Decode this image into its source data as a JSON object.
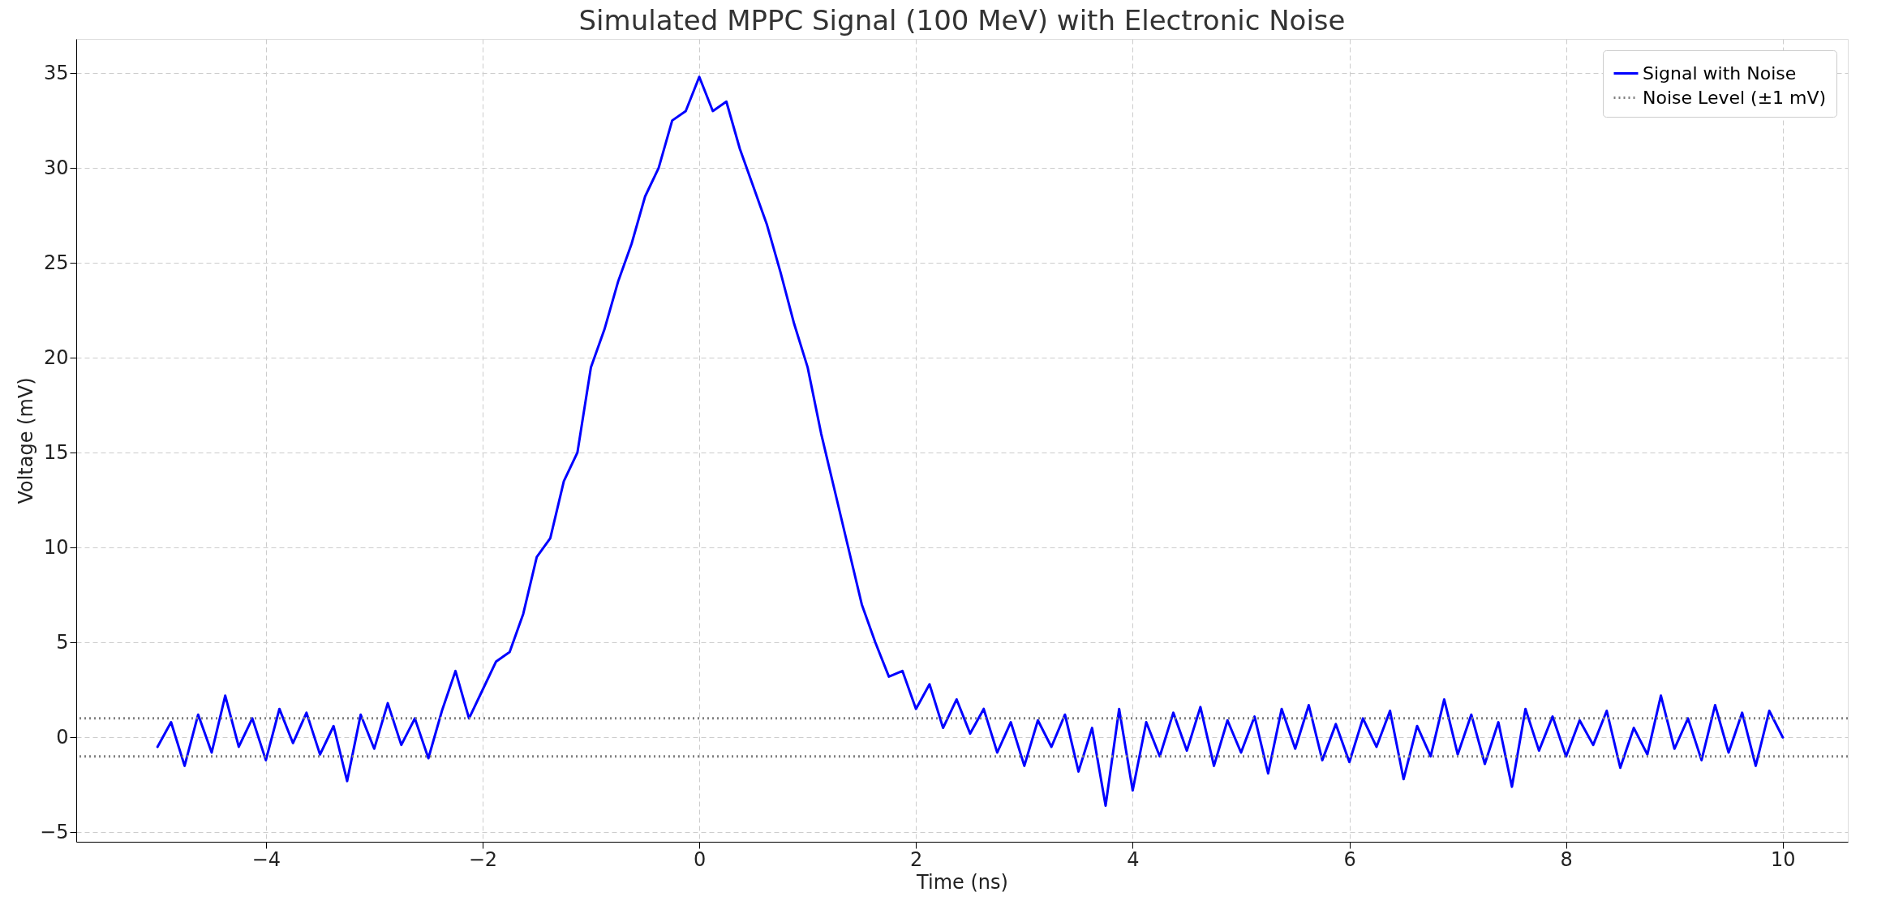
{
  "chart_data": {
    "type": "line",
    "title": "Simulated MPPC Signal (100 MeV) with Electronic Noise",
    "xlabel": "Time (ns)",
    "ylabel": "Voltage (mV)",
    "xlim": [
      -5.75,
      10.6
    ],
    "ylim": [
      -5.5,
      36.8
    ],
    "xticks": [
      -4,
      -2,
      0,
      2,
      4,
      6,
      8,
      10
    ],
    "yticks": [
      -5,
      0,
      5,
      10,
      15,
      20,
      25,
      30,
      35
    ],
    "grid": true,
    "legend": "top right",
    "line_style": "solid",
    "x": [
      -5,
      -4.875,
      -4.75,
      -4.625,
      -4.5,
      -4.375,
      -4.25,
      -4.125,
      -4,
      -3.875,
      -3.75,
      -3.625,
      -3.5,
      -3.375,
      -3.25,
      -3.125,
      -3,
      -2.875,
      -2.75,
      -2.625,
      -2.5,
      -2.375,
      -2.25,
      -2.125,
      -2,
      -1.875,
      -1.75,
      -1.625,
      -1.5,
      -1.375,
      -1.25,
      -1.125,
      -1,
      -0.875,
      -0.75,
      -0.625,
      -0.5,
      -0.375,
      -0.25,
      -0.125,
      0,
      0.125,
      0.25,
      0.375,
      0.5,
      0.625,
      0.75,
      0.875,
      1,
      1.125,
      1.25,
      1.375,
      1.5,
      1.625,
      1.75,
      1.875,
      2,
      2.125,
      2.25,
      2.375,
      2.5,
      2.625,
      2.75,
      2.875,
      3,
      3.125,
      3.25,
      3.375,
      3.5,
      3.625,
      3.75,
      3.875,
      4,
      4.125,
      4.25,
      4.375,
      4.5,
      4.625,
      4.75,
      4.875,
      5,
      5.125,
      5.25,
      5.375,
      5.5,
      5.625,
      5.75,
      5.875,
      6,
      6.125,
      6.25,
      6.375,
      6.5,
      6.625,
      6.75,
      6.875,
      7,
      7.125,
      7.25,
      7.375,
      7.5,
      7.625,
      7.75,
      7.875,
      8,
      8.125,
      8.25,
      8.375,
      8.5,
      8.625,
      8.75,
      8.875,
      9,
      9.125,
      9.25,
      9.375,
      9.5,
      9.625,
      9.75,
      9.875,
      10
    ],
    "series": [
      {
        "name": "Signal with Noise",
        "color": "#0000ff",
        "values": [
          -0.5,
          0.8,
          -1.5,
          1.2,
          -0.8,
          2.2,
          -0.5,
          1.0,
          -1.2,
          1.5,
          -0.3,
          1.3,
          -0.9,
          0.6,
          -2.3,
          1.2,
          -0.6,
          1.8,
          -0.4,
          1.0,
          -1.1,
          1.4,
          3.5,
          1.0,
          2.5,
          4.0,
          4.5,
          6.5,
          9.5,
          10.5,
          13.5,
          15.0,
          19.5,
          21.5,
          24.0,
          26.0,
          28.5,
          30.0,
          32.5,
          33.0,
          34.8,
          33.0,
          33.5,
          31.0,
          29.0,
          27.0,
          24.5,
          21.8,
          19.5,
          16.0,
          13.0,
          10.0,
          7.0,
          5.0,
          3.2,
          3.5,
          1.5,
          2.8,
          0.5,
          2.0,
          0.2,
          1.5,
          -0.8,
          0.8,
          -1.5,
          0.9,
          -0.5,
          1.2,
          -1.8,
          0.5,
          -3.6,
          1.5,
          -2.8,
          0.8,
          -1.0,
          1.3,
          -0.7,
          1.6,
          -1.5,
          0.9,
          -0.8,
          1.1,
          -1.9,
          1.5,
          -0.6,
          1.7,
          -1.2,
          0.7,
          -1.3,
          1.0,
          -0.5,
          1.4,
          -2.2,
          0.6,
          -1.0,
          2.0,
          -0.9,
          1.2,
          -1.4,
          0.8,
          -2.6,
          1.5,
          -0.7,
          1.1,
          -1.0,
          0.9,
          -0.4,
          1.4,
          -1.6,
          0.5,
          -0.9,
          2.2,
          -0.6,
          1.0,
          -1.2,
          1.7,
          -0.8,
          1.3,
          -1.5,
          1.4,
          0.0
        ]
      }
    ],
    "ref_lines": [
      {
        "axis": "y",
        "value": 1,
        "label": "Noise Level (±1 mV)",
        "color": "#808080",
        "line_style": "dotted"
      },
      {
        "axis": "y",
        "value": -1,
        "color": "#808080",
        "line_style": "dotted"
      }
    ]
  }
}
